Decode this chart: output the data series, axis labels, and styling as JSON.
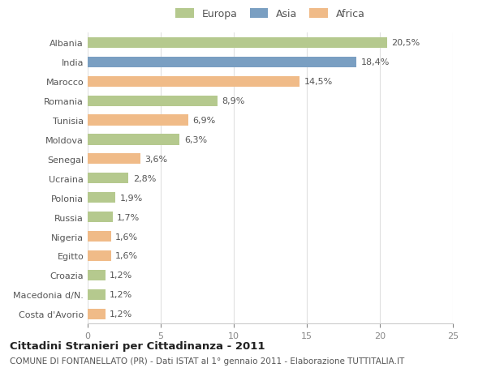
{
  "countries": [
    "Albania",
    "India",
    "Marocco",
    "Romania",
    "Tunisia",
    "Moldova",
    "Senegal",
    "Ucraina",
    "Polonia",
    "Russia",
    "Nigeria",
    "Egitto",
    "Croazia",
    "Macedonia d/N.",
    "Costa d'Avorio"
  ],
  "values": [
    20.5,
    18.4,
    14.5,
    8.9,
    6.9,
    6.3,
    3.6,
    2.8,
    1.9,
    1.7,
    1.6,
    1.6,
    1.2,
    1.2,
    1.2
  ],
  "labels": [
    "20,5%",
    "18,4%",
    "14,5%",
    "8,9%",
    "6,9%",
    "6,3%",
    "3,6%",
    "2,8%",
    "1,9%",
    "1,7%",
    "1,6%",
    "1,6%",
    "1,2%",
    "1,2%",
    "1,2%"
  ],
  "continents": [
    "Europa",
    "Asia",
    "Africa",
    "Europa",
    "Africa",
    "Europa",
    "Africa",
    "Europa",
    "Europa",
    "Europa",
    "Africa",
    "Africa",
    "Europa",
    "Europa",
    "Africa"
  ],
  "colors": {
    "Europa": "#b5c98e",
    "Asia": "#7a9fc2",
    "Africa": "#f0bb88"
  },
  "legend_labels": [
    "Europa",
    "Asia",
    "Africa"
  ],
  "xlim": [
    0,
    25
  ],
  "xticks": [
    0,
    5,
    10,
    15,
    20,
    25
  ],
  "title1": "Cittadini Stranieri per Cittadinanza - 2011",
  "title2": "COMUNE DI FONTANELLATO (PR) - Dati ISTAT al 1° gennaio 2011 - Elaborazione TUTTITALIA.IT",
  "background_color": "#ffffff",
  "bar_height": 0.55,
  "grid_color": "#e0e0e0",
  "label_fontsize": 8,
  "tick_fontsize": 8,
  "title1_fontsize": 9.5,
  "title2_fontsize": 7.5
}
